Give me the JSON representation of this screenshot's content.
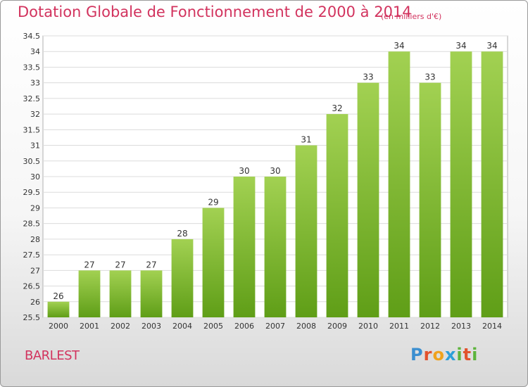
{
  "header": {
    "title": "Dotation Globale de Fonctionnement de 2000 à 2014",
    "unit": "(en milliers d'€)"
  },
  "footer": {
    "commune": "BARLEST",
    "logo": [
      "P",
      "r",
      "o",
      "x",
      "i",
      "t",
      "i"
    ]
  },
  "colors": {
    "title": "#d2335e",
    "bar_top": "#a2d152",
    "bar_bottom": "#5f9e17",
    "logo": [
      "#3b8fd0",
      "#e2522d",
      "#f0a21d",
      "#2e9fd8",
      "#5db43c",
      "#e2522d",
      "#5db43c"
    ]
  },
  "chart_data": {
    "type": "bar",
    "title": "Dotation Globale de Fonctionnement de 2000 à 2014",
    "subtitle": "(en milliers d'€)",
    "xlabel": "",
    "ylabel": "",
    "categories": [
      "2000",
      "2001",
      "2002",
      "2003",
      "2004",
      "2005",
      "2006",
      "2007",
      "2008",
      "2009",
      "2010",
      "2011",
      "2012",
      "2013",
      "2014"
    ],
    "values": [
      26,
      27,
      27,
      27,
      28,
      29,
      30,
      30,
      31,
      32,
      33,
      34,
      33,
      34,
      34
    ],
    "data_labels": [
      "26",
      "27",
      "27",
      "27",
      "28",
      "29",
      "30",
      "30",
      "31",
      "32",
      "33",
      "34",
      "33",
      "34",
      "34"
    ],
    "ylim": [
      25.5,
      34.5
    ],
    "yticks": [
      "25.5",
      "26",
      "26.5",
      "27",
      "27.5",
      "28",
      "28.5",
      "29",
      "29.5",
      "30",
      "30.5",
      "31",
      "31.5",
      "32",
      "32.5",
      "33",
      "33.5",
      "34",
      "34.5"
    ],
    "ytick_values": [
      25.5,
      26,
      26.5,
      27,
      27.5,
      28,
      28.5,
      29,
      29.5,
      30,
      30.5,
      31,
      31.5,
      32,
      32.5,
      33,
      33.5,
      34,
      34.5
    ],
    "grid": true,
    "legend": "none"
  }
}
